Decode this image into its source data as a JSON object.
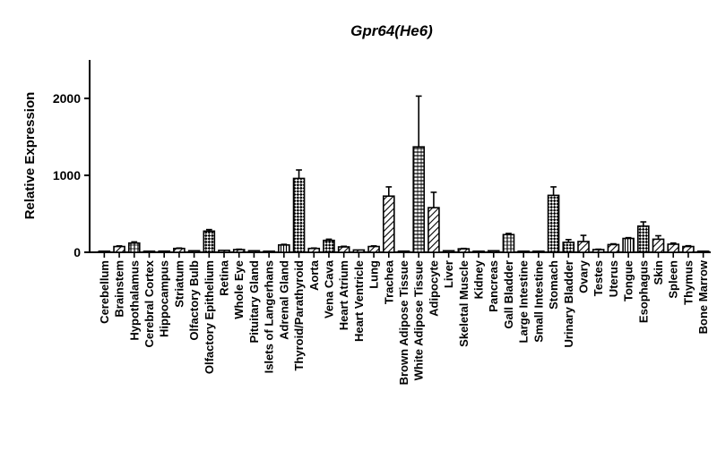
{
  "chart_data": {
    "type": "bar",
    "title": "Gpr64(He6)",
    "xlabel": "",
    "ylabel": "Relative Expression",
    "ylim": [
      0,
      2500
    ],
    "yticks": [
      0,
      1000,
      2000
    ],
    "ytick_labels": [
      "0",
      "1000",
      "2000"
    ],
    "grid": false,
    "legend": "none",
    "categories": [
      "Cerebellum",
      "Brainstem",
      "Hypothalamus",
      "Cerebral Cortex",
      "Hippocampus",
      "Striatum",
      "Olfactory Bulb",
      "Olfactory Epithelium",
      "Retina",
      "Whole Eye",
      "Pituitary Gland",
      "Islets of Langerhans",
      "Adrenal Gland",
      "Thyroid/Parathyroid",
      "Aorta",
      "Vena Cava",
      "Heart Atrium",
      "Heart Ventricle",
      "Lung",
      "Trachea",
      "Brown Adipose Tissue",
      "White Adipose Tissue",
      "Adipocyte",
      "Liver",
      "Skeletal Muscle",
      "Kidney",
      "Pancreas",
      "Gall Bladder",
      "Large Intestine",
      "Small Intestine",
      "Stomach",
      "Urinary Bladder",
      "Ovary",
      "Testes",
      "Uterus",
      "Tongue",
      "Esophagus",
      "Skin",
      "Spleen",
      "Thymus",
      "Bone Marrow"
    ],
    "values": [
      5,
      75,
      120,
      10,
      15,
      50,
      20,
      275,
      25,
      35,
      20,
      5,
      95,
      960,
      50,
      155,
      70,
      30,
      75,
      730,
      15,
      1370,
      580,
      20,
      45,
      10,
      20,
      230,
      5,
      10,
      740,
      130,
      140,
      35,
      100,
      180,
      340,
      170,
      105,
      75,
      5
    ],
    "errors": [
      0,
      8,
      15,
      0,
      0,
      5,
      0,
      20,
      0,
      5,
      0,
      0,
      8,
      110,
      5,
      15,
      8,
      0,
      8,
      120,
      0,
      660,
      200,
      0,
      5,
      0,
      0,
      15,
      0,
      0,
      110,
      35,
      80,
      5,
      10,
      10,
      55,
      45,
      15,
      10,
      0
    ],
    "patterns": [
      "diag",
      "diag",
      "vgrid",
      "hlines",
      "diag",
      "diag",
      "diag",
      "check",
      "diag",
      "diag",
      "diag",
      "diag",
      "vlines",
      "check",
      "diag",
      "check",
      "diag",
      "diag",
      "diag",
      "diag",
      "diag",
      "hgrid",
      "diag",
      "diag",
      "diag",
      "diag",
      "diag",
      "vgrid",
      "diag",
      "diag",
      "check",
      "check",
      "diag",
      "diag",
      "diag",
      "vlines",
      "check",
      "diag",
      "diag",
      "diag",
      "diag"
    ]
  }
}
